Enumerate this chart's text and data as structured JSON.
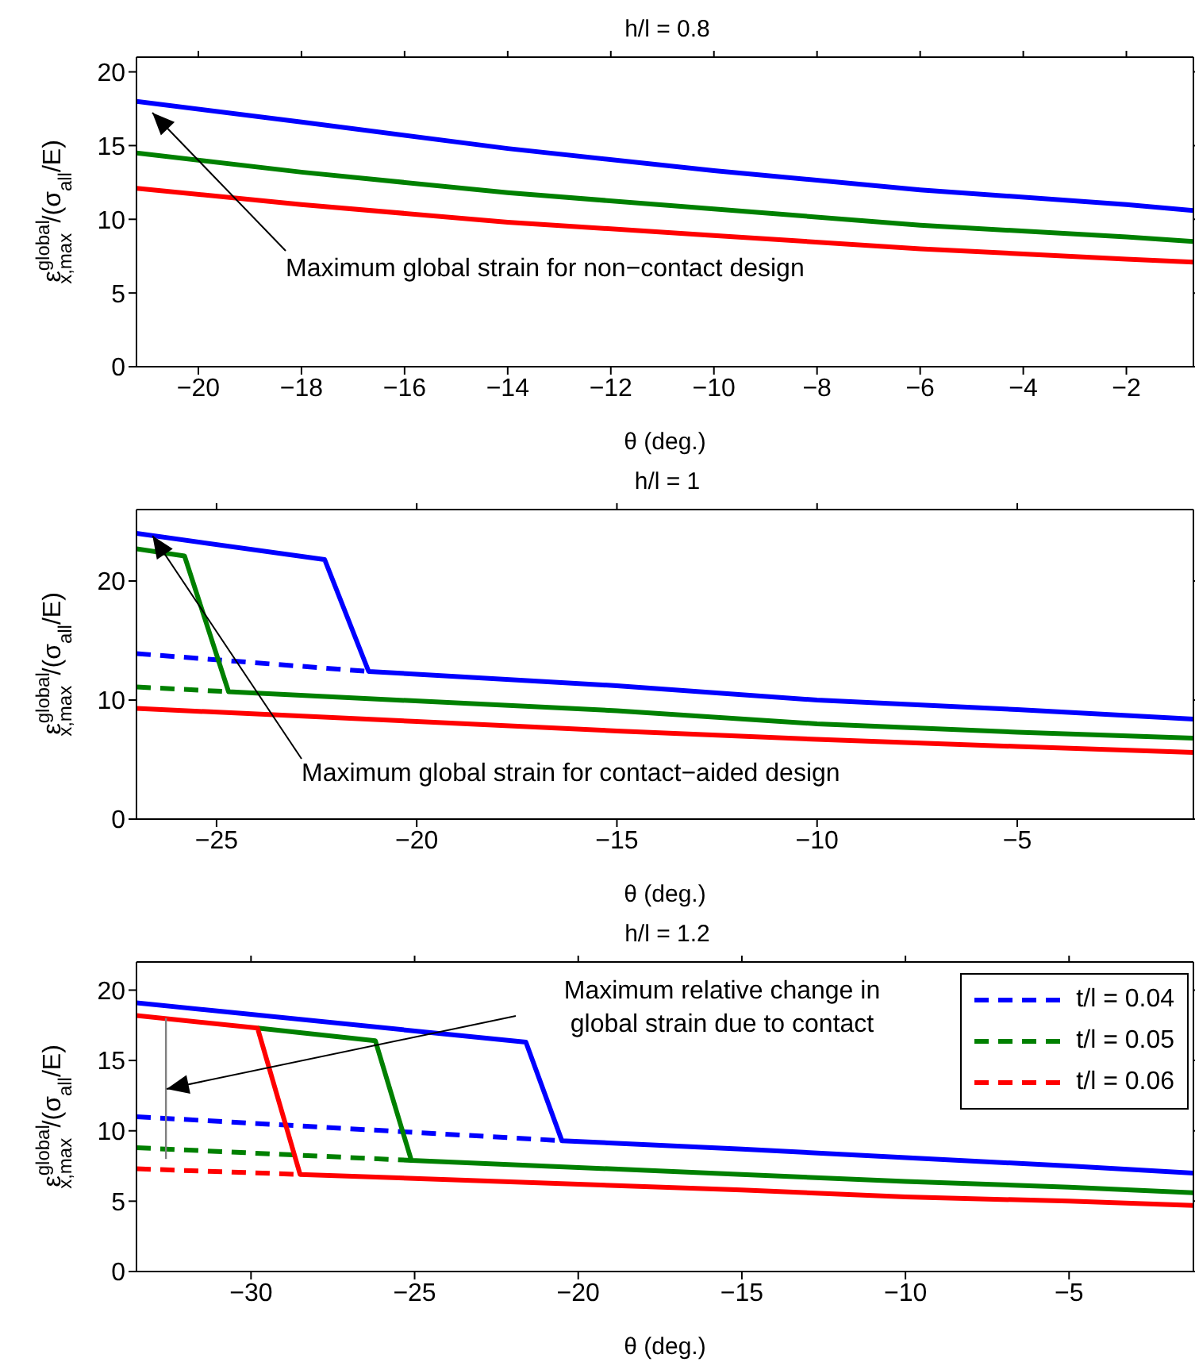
{
  "chart_data": [
    {
      "type": "line",
      "title": "h/l = 0.8",
      "xlabel": "θ (deg.)",
      "ylabel": "ε$^{global}$$_{x,max}$/(σ$_{all}$/E)",
      "xlim": [
        -21.2,
        -0.7
      ],
      "ylim": [
        0,
        21
      ],
      "xticks": [
        -20,
        -18,
        -16,
        -14,
        -12,
        -10,
        -8,
        -6,
        -4,
        -2
      ],
      "yticks": [
        0,
        5,
        10,
        15,
        20
      ],
      "annotations": [
        "Maximum global strain for non−contact design"
      ],
      "series": [
        {
          "color": "#0000ff",
          "line_style": "solid",
          "x": [
            -21.2,
            -18,
            -14,
            -10,
            -6,
            -2,
            -0.7
          ],
          "values": [
            18,
            16.6,
            14.8,
            13.3,
            12,
            11,
            10.6
          ]
        },
        {
          "color": "#008000",
          "line_style": "solid",
          "x": [
            -21.2,
            -18,
            -14,
            -10,
            -6,
            -2,
            -0.7
          ],
          "values": [
            14.5,
            13.2,
            11.8,
            10.7,
            9.6,
            8.8,
            8.5
          ]
        },
        {
          "color": "#ff0000",
          "line_style": "solid",
          "x": [
            -21.2,
            -18,
            -14,
            -10,
            -6,
            -2,
            -0.7
          ],
          "values": [
            12.1,
            11,
            9.8,
            8.9,
            8,
            7.3,
            7.1
          ]
        }
      ]
    },
    {
      "type": "line",
      "title": "h/l = 1",
      "xlabel": "θ (deg.)",
      "ylabel": "ε$^{global}$$_{x,max}$/(σ$_{all}$/E)",
      "xlim": [
        -27,
        -0.6
      ],
      "ylim": [
        0,
        26
      ],
      "xticks": [
        -25,
        -20,
        -15,
        -10,
        -5
      ],
      "yticks": [
        0,
        10,
        20
      ],
      "annotations": [
        {
          "text": "Maximum global strain for contact−aided design",
          "x": -26.6,
          "y": 23.8
        }
      ],
      "series": [
        {
          "color": "#0000ff",
          "line_style": "solid",
          "x": [
            -27,
            -22.3,
            -21.2,
            -15,
            -10,
            -5,
            -0.6
          ],
          "values": [
            24,
            21.8,
            12.4,
            11.2,
            10,
            9.2,
            8.4
          ]
        },
        {
          "color": "#0000ff",
          "line_style": "dashed",
          "x": [
            -27,
            -21.2
          ],
          "values": [
            13.9,
            12.4
          ]
        },
        {
          "color": "#008000",
          "line_style": "solid",
          "x": [
            -27,
            -25.8,
            -24.7,
            -15,
            -10,
            -5,
            -0.6
          ],
          "values": [
            22.7,
            22.1,
            10.7,
            9.1,
            8,
            7.3,
            6.8
          ]
        },
        {
          "color": "#008000",
          "line_style": "dashed",
          "x": [
            -27,
            -24.7
          ],
          "values": [
            11.1,
            10.7
          ]
        },
        {
          "color": "#ff0000",
          "line_style": "solid",
          "x": [
            -27,
            -20,
            -15,
            -10,
            -5,
            -0.6
          ],
          "values": [
            9.3,
            8.2,
            7.4,
            6.7,
            6.1,
            5.6
          ]
        }
      ]
    },
    {
      "type": "line",
      "title": "h/l = 1.2",
      "xlabel": "θ (deg.)",
      "ylabel": "ε$^{global}$$_{x,max}$/(σ$_{all}$/E)",
      "xlim": [
        -33.5,
        -1.2
      ],
      "ylim": [
        0,
        22
      ],
      "xticks": [
        -30,
        -25,
        -20,
        -15,
        -10,
        -5
      ],
      "yticks": [
        0,
        5,
        10,
        15,
        20
      ],
      "legend": "top right",
      "annotations": [
        "Maximum relative change in global strain due to contact"
      ],
      "series": [
        {
          "color": "#0000ff",
          "line_style": "solid",
          "x": [
            -33.5,
            -21.6,
            -20.5,
            -15,
            -10,
            -5,
            -1.2
          ],
          "values": [
            19.1,
            16.3,
            9.3,
            8.7,
            8.1,
            7.5,
            7
          ]
        },
        {
          "name": "t/l = 0.04",
          "color": "#0000ff",
          "line_style": "dashed",
          "x": [
            -33.5,
            -20.5
          ],
          "values": [
            11,
            9.3
          ]
        },
        {
          "color": "#008000",
          "line_style": "solid",
          "x": [
            -29.8,
            -26.2,
            -25.1,
            -15,
            -10,
            -5,
            -1.2
          ],
          "values": [
            17.3,
            16.4,
            7.9,
            6.9,
            6.4,
            6,
            5.6
          ]
        },
        {
          "name": "t/l = 0.05",
          "color": "#008000",
          "line_style": "dashed",
          "x": [
            -33.5,
            -25.1
          ],
          "values": [
            8.8,
            7.9
          ]
        },
        {
          "color": "#ff0000",
          "line_style": "solid",
          "x": [
            -33.5,
            -29.8,
            -28.5,
            -20,
            -15,
            -10,
            -5,
            -1.2
          ],
          "values": [
            18.2,
            17.3,
            6.9,
            6.2,
            5.8,
            5.3,
            5,
            4.7
          ]
        },
        {
          "name": "t/l = 0.06",
          "color": "#ff0000",
          "line_style": "dashed",
          "x": [
            -33.5,
            -28.5
          ],
          "values": [
            7.3,
            6.9
          ]
        },
        {
          "color": "#808080",
          "line_style": "solid",
          "x": [
            -32.6,
            -32.6
          ],
          "values": [
            8,
            18
          ]
        }
      ]
    }
  ]
}
